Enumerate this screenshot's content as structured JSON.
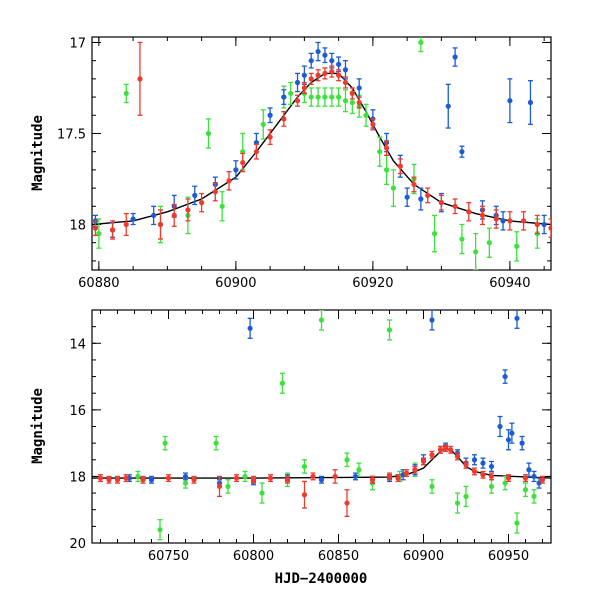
{
  "chart_data": [
    {
      "type": "scatter",
      "title": "",
      "xlabel": "",
      "ylabel": "Magnitude",
      "xlim": [
        60879,
        60946
      ],
      "ylim": [
        18.25,
        16.97
      ],
      "y_inverted": true,
      "xticks_major": [
        60880,
        60900,
        60920,
        60940
      ],
      "xtick_labels": [
        "60880",
        "60900",
        "60920",
        "60940"
      ],
      "yticks_major": [
        17,
        17.5,
        18
      ],
      "ytick_labels": [
        "17",
        "17.5",
        "18"
      ],
      "colors": {
        "blue": "#1a5cd6",
        "green": "#3be23b",
        "red": "#ee3b2e",
        "model": "#000000"
      },
      "model": {
        "name": "fit",
        "x": [
          60879,
          60885,
          60890,
          60895,
          60900,
          60903,
          60906,
          60909,
          60911,
          60913,
          60915,
          60917,
          60919,
          60921,
          60923,
          60926,
          60930,
          60935,
          60940,
          60946
        ],
        "y": [
          18.0,
          17.98,
          17.93,
          17.86,
          17.74,
          17.6,
          17.45,
          17.3,
          17.22,
          17.17,
          17.17,
          17.25,
          17.38,
          17.52,
          17.65,
          17.78,
          17.88,
          17.94,
          17.98,
          18.0
        ]
      },
      "series": [
        {
          "name": "blue",
          "x": [
            60879.5,
            60882,
            60885,
            60888,
            60891,
            60894,
            60897,
            60900,
            60903,
            60905,
            60907,
            60909,
            60910,
            60911,
            60912,
            60913,
            60914,
            60915,
            60916,
            60918,
            60920,
            60922,
            60924,
            60925,
            60927,
            60930,
            60931,
            60932,
            60933,
            60936,
            60938,
            60939,
            60940,
            60943,
            60945
          ],
          "y": [
            17.98,
            18.03,
            17.97,
            17.95,
            17.9,
            17.84,
            17.78,
            17.7,
            17.55,
            17.4,
            17.3,
            17.22,
            17.18,
            17.1,
            17.05,
            17.07,
            17.1,
            17.12,
            17.15,
            17.25,
            17.42,
            17.55,
            17.68,
            17.85,
            17.86,
            17.88,
            17.35,
            17.08,
            17.6,
            17.92,
            17.95,
            17.98,
            17.32,
            17.33,
            18.0
          ],
          "err": [
            0.03,
            0.04,
            0.03,
            0.05,
            0.06,
            0.05,
            0.04,
            0.05,
            0.05,
            0.04,
            0.04,
            0.05,
            0.05,
            0.04,
            0.05,
            0.04,
            0.04,
            0.04,
            0.05,
            0.05,
            0.05,
            0.05,
            0.06,
            0.05,
            0.06,
            0.05,
            0.12,
            0.05,
            0.03,
            0.05,
            0.05,
            0.05,
            0.12,
            0.12,
            0.05
          ]
        },
        {
          "name": "green",
          "x": [
            60880,
            60884,
            60889,
            60893,
            60896,
            60898,
            60901,
            60904,
            60907,
            60908,
            60910,
            60911,
            60912,
            60913,
            60914,
            60915,
            60916,
            60917,
            60918,
            60919,
            60921,
            60922,
            60923,
            60926,
            60927,
            60929,
            60933,
            60935,
            60937,
            60941,
            60944
          ],
          "y": [
            18.05,
            17.28,
            18.0,
            17.95,
            17.5,
            17.9,
            17.6,
            17.45,
            17.3,
            17.28,
            17.28,
            17.3,
            17.3,
            17.3,
            17.3,
            17.3,
            17.32,
            17.33,
            17.35,
            17.4,
            17.6,
            17.7,
            17.8,
            17.75,
            17.0,
            18.05,
            18.08,
            18.15,
            18.1,
            18.12,
            18.05
          ],
          "err": [
            0.08,
            0.05,
            0.1,
            0.1,
            0.08,
            0.08,
            0.1,
            0.08,
            0.06,
            0.06,
            0.05,
            0.05,
            0.05,
            0.05,
            0.05,
            0.05,
            0.06,
            0.06,
            0.06,
            0.06,
            0.08,
            0.08,
            0.1,
            0.08,
            0.05,
            0.1,
            0.08,
            0.1,
            0.08,
            0.08,
            0.08
          ]
        },
        {
          "name": "red",
          "x": [
            60879.5,
            60882,
            60884,
            60886,
            60889,
            60891,
            60893,
            60895,
            60897,
            60899,
            60901,
            60903,
            60905,
            60907,
            60909,
            60910,
            60911,
            60912,
            60913,
            60914,
            60915,
            60916,
            60917,
            60918,
            60920,
            60922,
            60924,
            60926,
            60928,
            60930,
            60932,
            60934,
            60936,
            60938,
            60940,
            60942,
            60944,
            60946
          ],
          "y": [
            18.02,
            18.03,
            18.0,
            17.2,
            18.0,
            17.95,
            17.92,
            17.88,
            17.82,
            17.76,
            17.66,
            17.6,
            17.52,
            17.42,
            17.32,
            17.25,
            17.2,
            17.18,
            17.17,
            17.16,
            17.18,
            17.22,
            17.28,
            17.33,
            17.45,
            17.58,
            17.68,
            17.78,
            17.84,
            17.88,
            17.9,
            17.93,
            17.95,
            17.97,
            17.98,
            17.98,
            18.0,
            18.02
          ],
          "err": [
            0.04,
            0.05,
            0.06,
            0.2,
            0.08,
            0.06,
            0.06,
            0.05,
            0.05,
            0.05,
            0.05,
            0.04,
            0.04,
            0.04,
            0.03,
            0.03,
            0.03,
            0.03,
            0.03,
            0.03,
            0.03,
            0.03,
            0.03,
            0.03,
            0.03,
            0.04,
            0.04,
            0.04,
            0.04,
            0.04,
            0.04,
            0.05,
            0.05,
            0.05,
            0.05,
            0.05,
            0.05,
            0.05
          ]
        }
      ]
    },
    {
      "type": "scatter",
      "title": "",
      "xlabel": "HJD−2400000",
      "ylabel": "Magnitude",
      "xlim": [
        60705,
        60975
      ],
      "ylim": [
        20,
        13
      ],
      "y_inverted": true,
      "xticks_major": [
        60750,
        60800,
        60850,
        60900,
        60950
      ],
      "xtick_labels": [
        "60750",
        "60800",
        "60850",
        "60900",
        "60950"
      ],
      "yticks_major": [
        14,
        16,
        18,
        20
      ],
      "ytick_labels": [
        "14",
        "16",
        "18",
        "20"
      ],
      "colors": {
        "blue": "#1a5cd6",
        "green": "#3be23b",
        "red": "#ee3b2e",
        "model": "#000000"
      },
      "model": {
        "name": "fit",
        "x": [
          60705,
          60800,
          60880,
          60890,
          60900,
          60905,
          60910,
          60913,
          60916,
          60920,
          60925,
          60930,
          60940,
          60975
        ],
        "y": [
          18.05,
          18.05,
          18.02,
          17.95,
          17.75,
          17.5,
          17.25,
          17.17,
          17.2,
          17.4,
          17.7,
          17.85,
          17.97,
          18.05
        ]
      },
      "series": [
        {
          "name": "blue",
          "x": [
            60727,
            60740,
            60760,
            60780,
            60798,
            60800,
            60820,
            60840,
            60860,
            60870,
            60880,
            60888,
            60895,
            60900,
            60905,
            60910,
            60913,
            60920,
            60925,
            60930,
            60935,
            60940,
            60945,
            60948,
            60950,
            60952,
            60955,
            60958,
            60962,
            60965,
            60968
          ],
          "y": [
            18.05,
            18.1,
            18.0,
            18.2,
            13.55,
            18.15,
            18.05,
            18.1,
            18.0,
            18.1,
            18.05,
            17.95,
            17.8,
            17.5,
            13.3,
            17.2,
            17.1,
            17.3,
            17.6,
            17.5,
            17.6,
            17.7,
            16.5,
            15.0,
            16.9,
            16.7,
            13.25,
            17.0,
            17.8,
            18.0,
            18.2
          ],
          "err": [
            0.1,
            0.1,
            0.1,
            0.1,
            0.3,
            0.1,
            0.1,
            0.1,
            0.1,
            0.1,
            0.1,
            0.15,
            0.15,
            0.15,
            0.3,
            0.1,
            0.1,
            0.1,
            0.15,
            0.15,
            0.15,
            0.15,
            0.3,
            0.2,
            0.3,
            0.3,
            0.3,
            0.2,
            0.2,
            0.15,
            0.15
          ]
        },
        {
          "name": "green",
          "x": [
            60732,
            60745,
            60748,
            60760,
            60778,
            60785,
            60795,
            60805,
            60817,
            60820,
            60830,
            60840,
            60855,
            60862,
            60870,
            60880,
            60886,
            60895,
            60905,
            60920,
            60925,
            60940,
            60948,
            60955,
            60960,
            60965
          ],
          "y": [
            18.0,
            19.6,
            17.0,
            18.2,
            17.0,
            18.3,
            18.0,
            18.5,
            15.2,
            18.1,
            17.7,
            13.3,
            17.5,
            17.8,
            18.2,
            13.6,
            18.0,
            17.8,
            18.3,
            18.8,
            18.6,
            18.3,
            18.2,
            19.4,
            18.4,
            18.6
          ],
          "err": [
            0.15,
            0.3,
            0.2,
            0.15,
            0.2,
            0.2,
            0.15,
            0.3,
            0.3,
            0.2,
            0.2,
            0.3,
            0.2,
            0.2,
            0.2,
            0.3,
            0.15,
            0.2,
            0.2,
            0.3,
            0.3,
            0.2,
            0.2,
            0.3,
            0.2,
            0.2
          ]
        },
        {
          "name": "red",
          "x": [
            60710,
            60715,
            60720,
            60725,
            60735,
            60750,
            60765,
            60780,
            60790,
            60800,
            60810,
            60820,
            60830,
            60835,
            60848,
            60855,
            60870,
            60880,
            60885,
            60890,
            60895,
            60900,
            60905,
            60910,
            60913,
            60916,
            60920,
            60925,
            60930,
            60935,
            60940,
            60950,
            60960,
            60970
          ],
          "y": [
            18.05,
            18.1,
            18.1,
            18.05,
            18.1,
            18.05,
            18.1,
            18.3,
            18.05,
            18.1,
            18.05,
            18.1,
            18.55,
            18.0,
            18.0,
            18.8,
            18.1,
            18.0,
            18.05,
            17.9,
            17.8,
            17.55,
            17.35,
            17.2,
            17.15,
            17.2,
            17.4,
            17.65,
            17.85,
            17.95,
            18.0,
            18.05,
            18.05,
            18.1
          ],
          "err": [
            0.1,
            0.1,
            0.1,
            0.1,
            0.1,
            0.1,
            0.1,
            0.3,
            0.1,
            0.1,
            0.1,
            0.1,
            0.4,
            0.1,
            0.2,
            0.4,
            0.1,
            0.1,
            0.1,
            0.1,
            0.1,
            0.1,
            0.1,
            0.1,
            0.1,
            0.1,
            0.1,
            0.1,
            0.1,
            0.1,
            0.1,
            0.1,
            0.1,
            0.1
          ]
        }
      ]
    }
  ]
}
